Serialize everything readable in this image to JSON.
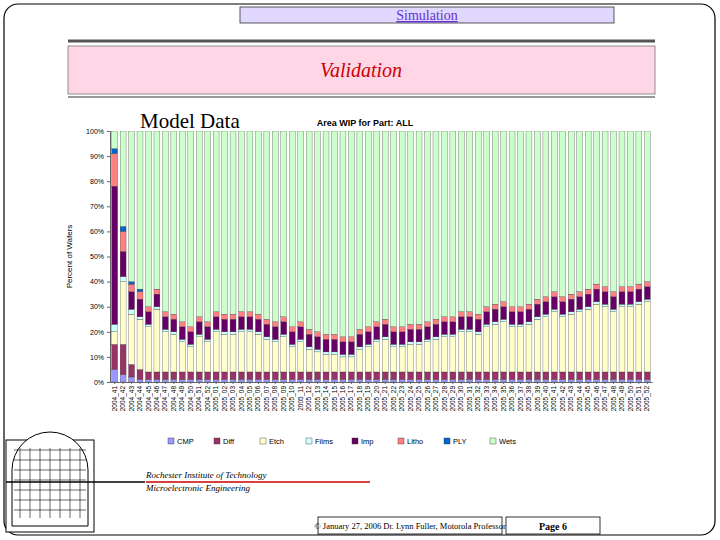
{
  "slide": {
    "header": "Simulation",
    "banner": "Validation",
    "heading": "Model Data",
    "institution": "Rochester Institute of Technology",
    "department": "Microelectronic Engineering",
    "footer": "© January 27, 2006 Dr. Lynn Fuller, Motorola Professor",
    "page": "Page 6"
  },
  "chart_data": {
    "type": "bar",
    "stacked": true,
    "title": "Area WIP for Part: ALL",
    "y_label": "Percent of Wafers",
    "legend": "bottom",
    "grid": false,
    "categories": [
      "2004_41",
      "2004_42",
      "2004_43",
      "2004_44",
      "2004_45",
      "2004_46",
      "2004_47",
      "2004_48",
      "2004_49",
      "2004_50",
      "2004_51",
      "2004_52",
      "2005_01",
      "2005_02",
      "2005_03",
      "2005_04",
      "2005_05",
      "2005_06",
      "2005_07",
      "2005_08",
      "2005_09",
      "2005_10",
      "2005_11",
      "2005_12",
      "2005_13",
      "2005_14",
      "2005_15",
      "2005_16",
      "2005_17",
      "2005_18",
      "2005_19",
      "2005_20",
      "2005_21",
      "2005_22",
      "2005_23",
      "2005_24",
      "2005_25",
      "2005_26",
      "2005_27",
      "2005_28",
      "2005_29",
      "2005_30",
      "2005_31",
      "2005_32",
      "2005_33",
      "2005_34",
      "2005_35",
      "2005_36",
      "2005_37",
      "2005_38",
      "2005_39",
      "2005_40",
      "2005_41",
      "2005_42",
      "2005_43",
      "2005_44",
      "2005_45",
      "2005_46",
      "2005_47",
      "2005_48",
      "2005_49",
      "2005_50",
      "2005_51",
      "2005_52"
    ],
    "ylim": [
      0,
      100
    ],
    "yticks": [
      {
        "value": 0,
        "label": "0%"
      },
      {
        "value": 10,
        "label": "10%"
      },
      {
        "value": 20,
        "label": "20%"
      },
      {
        "value": 30,
        "label": "30%"
      },
      {
        "value": 40,
        "label": "40%"
      },
      {
        "value": 50,
        "label": "50%"
      },
      {
        "value": 60,
        "label": "60%"
      },
      {
        "value": 70,
        "label": "70%"
      },
      {
        "value": 80,
        "label": "80%"
      },
      {
        "value": 90,
        "label": "90%"
      },
      {
        "value": 100,
        "label": "100%"
      }
    ],
    "series": [
      {
        "name": "CMP",
        "color": "#9999ff",
        "values": [
          5,
          3,
          2,
          1,
          1,
          1,
          1,
          1,
          1,
          1,
          1,
          1,
          1,
          1,
          1,
          1,
          1,
          1,
          1,
          1,
          1,
          1,
          1,
          1,
          1,
          1,
          1,
          1,
          1,
          1,
          1,
          1,
          1,
          1,
          1,
          1,
          1,
          1,
          1,
          1,
          1,
          1,
          1,
          1,
          1,
          1,
          1,
          1,
          1,
          1,
          1,
          1,
          1,
          1,
          1,
          1,
          1,
          1,
          1,
          1,
          1,
          1,
          1,
          1
        ]
      },
      {
        "name": "Diff",
        "color": "#993366",
        "values": [
          10,
          12,
          5,
          4,
          3,
          3,
          3,
          3,
          3,
          3,
          3,
          3,
          3,
          3,
          3,
          3,
          3,
          3,
          3,
          3,
          3,
          3,
          3,
          3,
          3,
          3,
          3,
          3,
          3,
          3,
          3,
          3,
          3,
          3,
          3,
          3,
          3,
          3,
          3,
          3,
          3,
          3,
          3,
          3,
          3,
          3,
          3,
          3,
          3,
          3,
          3,
          3,
          3,
          3,
          3,
          3,
          3,
          3,
          3,
          3,
          3,
          3,
          3,
          3
        ]
      },
      {
        "name": "Etch",
        "color": "#ffffcc",
        "values": [
          5,
          25,
          20,
          20,
          18,
          25,
          16,
          15,
          12,
          10,
          14,
          12,
          16,
          15,
          15,
          16,
          16,
          15,
          13,
          12,
          14,
          10,
          12,
          9,
          8,
          7,
          7,
          6,
          6,
          9,
          10,
          12,
          13,
          10,
          10,
          11,
          11,
          12,
          13,
          14,
          14,
          16,
          16,
          15,
          18,
          19,
          20,
          18,
          18,
          19,
          21,
          22,
          24,
          22,
          23,
          24,
          25,
          27,
          26,
          24,
          26,
          26,
          27,
          28
        ]
      },
      {
        "name": "Films",
        "color": "#ccffff",
        "values": [
          3,
          2,
          2,
          1,
          1,
          1,
          1,
          1,
          1,
          1,
          1,
          1,
          1,
          1,
          1,
          1,
          1,
          1,
          1,
          1,
          1,
          1,
          1,
          1,
          1,
          1,
          1,
          1,
          1,
          1,
          1,
          1,
          1,
          1,
          1,
          1,
          1,
          1,
          1,
          1,
          1,
          1,
          1,
          1,
          1,
          1,
          1,
          1,
          1,
          1,
          1,
          1,
          1,
          1,
          1,
          1,
          1,
          1,
          1,
          1,
          1,
          1,
          1,
          1
        ]
      },
      {
        "name": "Imp",
        "color": "#660066",
        "values": [
          55,
          10,
          7,
          7,
          5,
          5,
          5,
          5,
          5,
          5,
          5,
          5,
          5,
          5,
          5,
          5,
          5,
          5,
          5,
          5,
          5,
          5,
          5,
          5,
          5,
          5,
          5,
          5,
          5,
          5,
          5,
          5,
          5,
          5,
          5,
          5,
          5,
          5,
          5,
          5,
          5,
          5,
          5,
          5,
          5,
          5,
          5,
          5,
          5,
          5,
          5,
          5,
          5,
          5,
          5,
          5,
          5,
          5,
          5,
          5,
          5,
          5,
          5,
          5
        ]
      },
      {
        "name": "Litho",
        "color": "#ff8080",
        "values": [
          13,
          8,
          3,
          3,
          2,
          2,
          2,
          2,
          2,
          2,
          2,
          2,
          2,
          2,
          2,
          2,
          2,
          2,
          2,
          2,
          2,
          2,
          2,
          2,
          2,
          2,
          2,
          2,
          2,
          2,
          2,
          2,
          2,
          2,
          2,
          2,
          2,
          2,
          2,
          2,
          2,
          2,
          2,
          2,
          2,
          2,
          2,
          2,
          2,
          2,
          2,
          2,
          2,
          2,
          2,
          2,
          2,
          2,
          2,
          2,
          2,
          2,
          2,
          2
        ]
      },
      {
        "name": "PLY",
        "color": "#0066cc",
        "values": [
          2,
          2,
          1,
          1,
          0,
          0,
          0,
          0,
          0,
          0,
          0,
          0,
          0,
          0,
          0,
          0,
          0,
          0,
          0,
          0,
          0,
          0,
          0,
          0,
          0,
          0,
          0,
          0,
          0,
          0,
          0,
          0,
          0,
          0,
          0,
          0,
          0,
          0,
          0,
          0,
          0,
          0,
          0,
          0,
          0,
          0,
          0,
          0,
          0,
          0,
          0,
          0,
          0,
          0,
          0,
          0,
          0,
          0,
          0,
          0,
          0,
          0,
          0,
          0
        ]
      },
      {
        "name": "Wets",
        "color": "#ccffcc",
        "values": [
          7,
          38,
          60,
          63,
          70,
          63,
          72,
          73,
          76,
          78,
          74,
          76,
          72,
          73,
          73,
          72,
          72,
          73,
          75,
          76,
          74,
          78,
          76,
          79,
          80,
          81,
          81,
          82,
          82,
          79,
          78,
          76,
          75,
          78,
          78,
          77,
          77,
          76,
          75,
          74,
          74,
          72,
          72,
          73,
          70,
          69,
          68,
          70,
          70,
          69,
          67,
          66,
          64,
          66,
          65,
          64,
          63,
          61,
          62,
          64,
          62,
          62,
          61,
          60
        ]
      }
    ]
  }
}
